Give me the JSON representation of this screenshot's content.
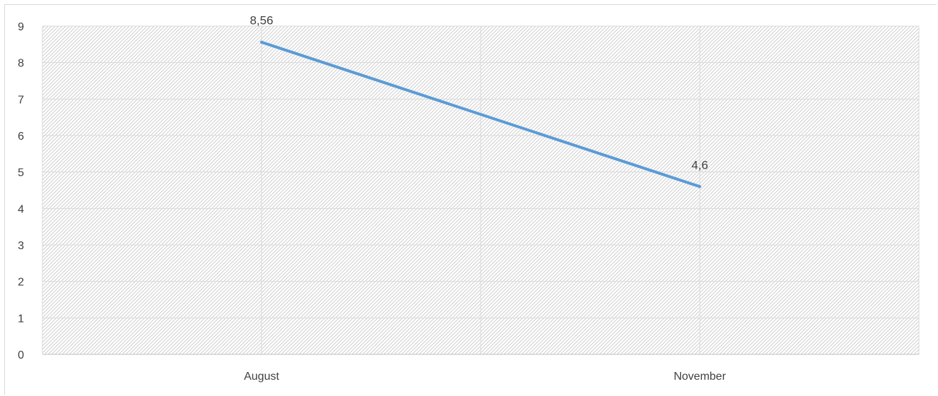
{
  "chart_data": {
    "type": "line",
    "title": "",
    "xlabel": "",
    "ylabel": "",
    "categories": [
      "August",
      "November"
    ],
    "series": [
      {
        "values": [
          8.56,
          4.6
        ],
        "data_labels": [
          "8,56",
          "4,6"
        ],
        "color": "#5b9bd5"
      }
    ],
    "ylim": [
      0,
      9
    ],
    "yticks": [
      0,
      1,
      2,
      3,
      4,
      5,
      6,
      7,
      8,
      9
    ],
    "grid": true,
    "plot_fill": "diagonal-hatch",
    "legend": "none"
  },
  "colors": {
    "line": "#5b9bd5",
    "grid": "#d9d9d9",
    "hatch": "#d0d0d0",
    "text": "#404040"
  }
}
